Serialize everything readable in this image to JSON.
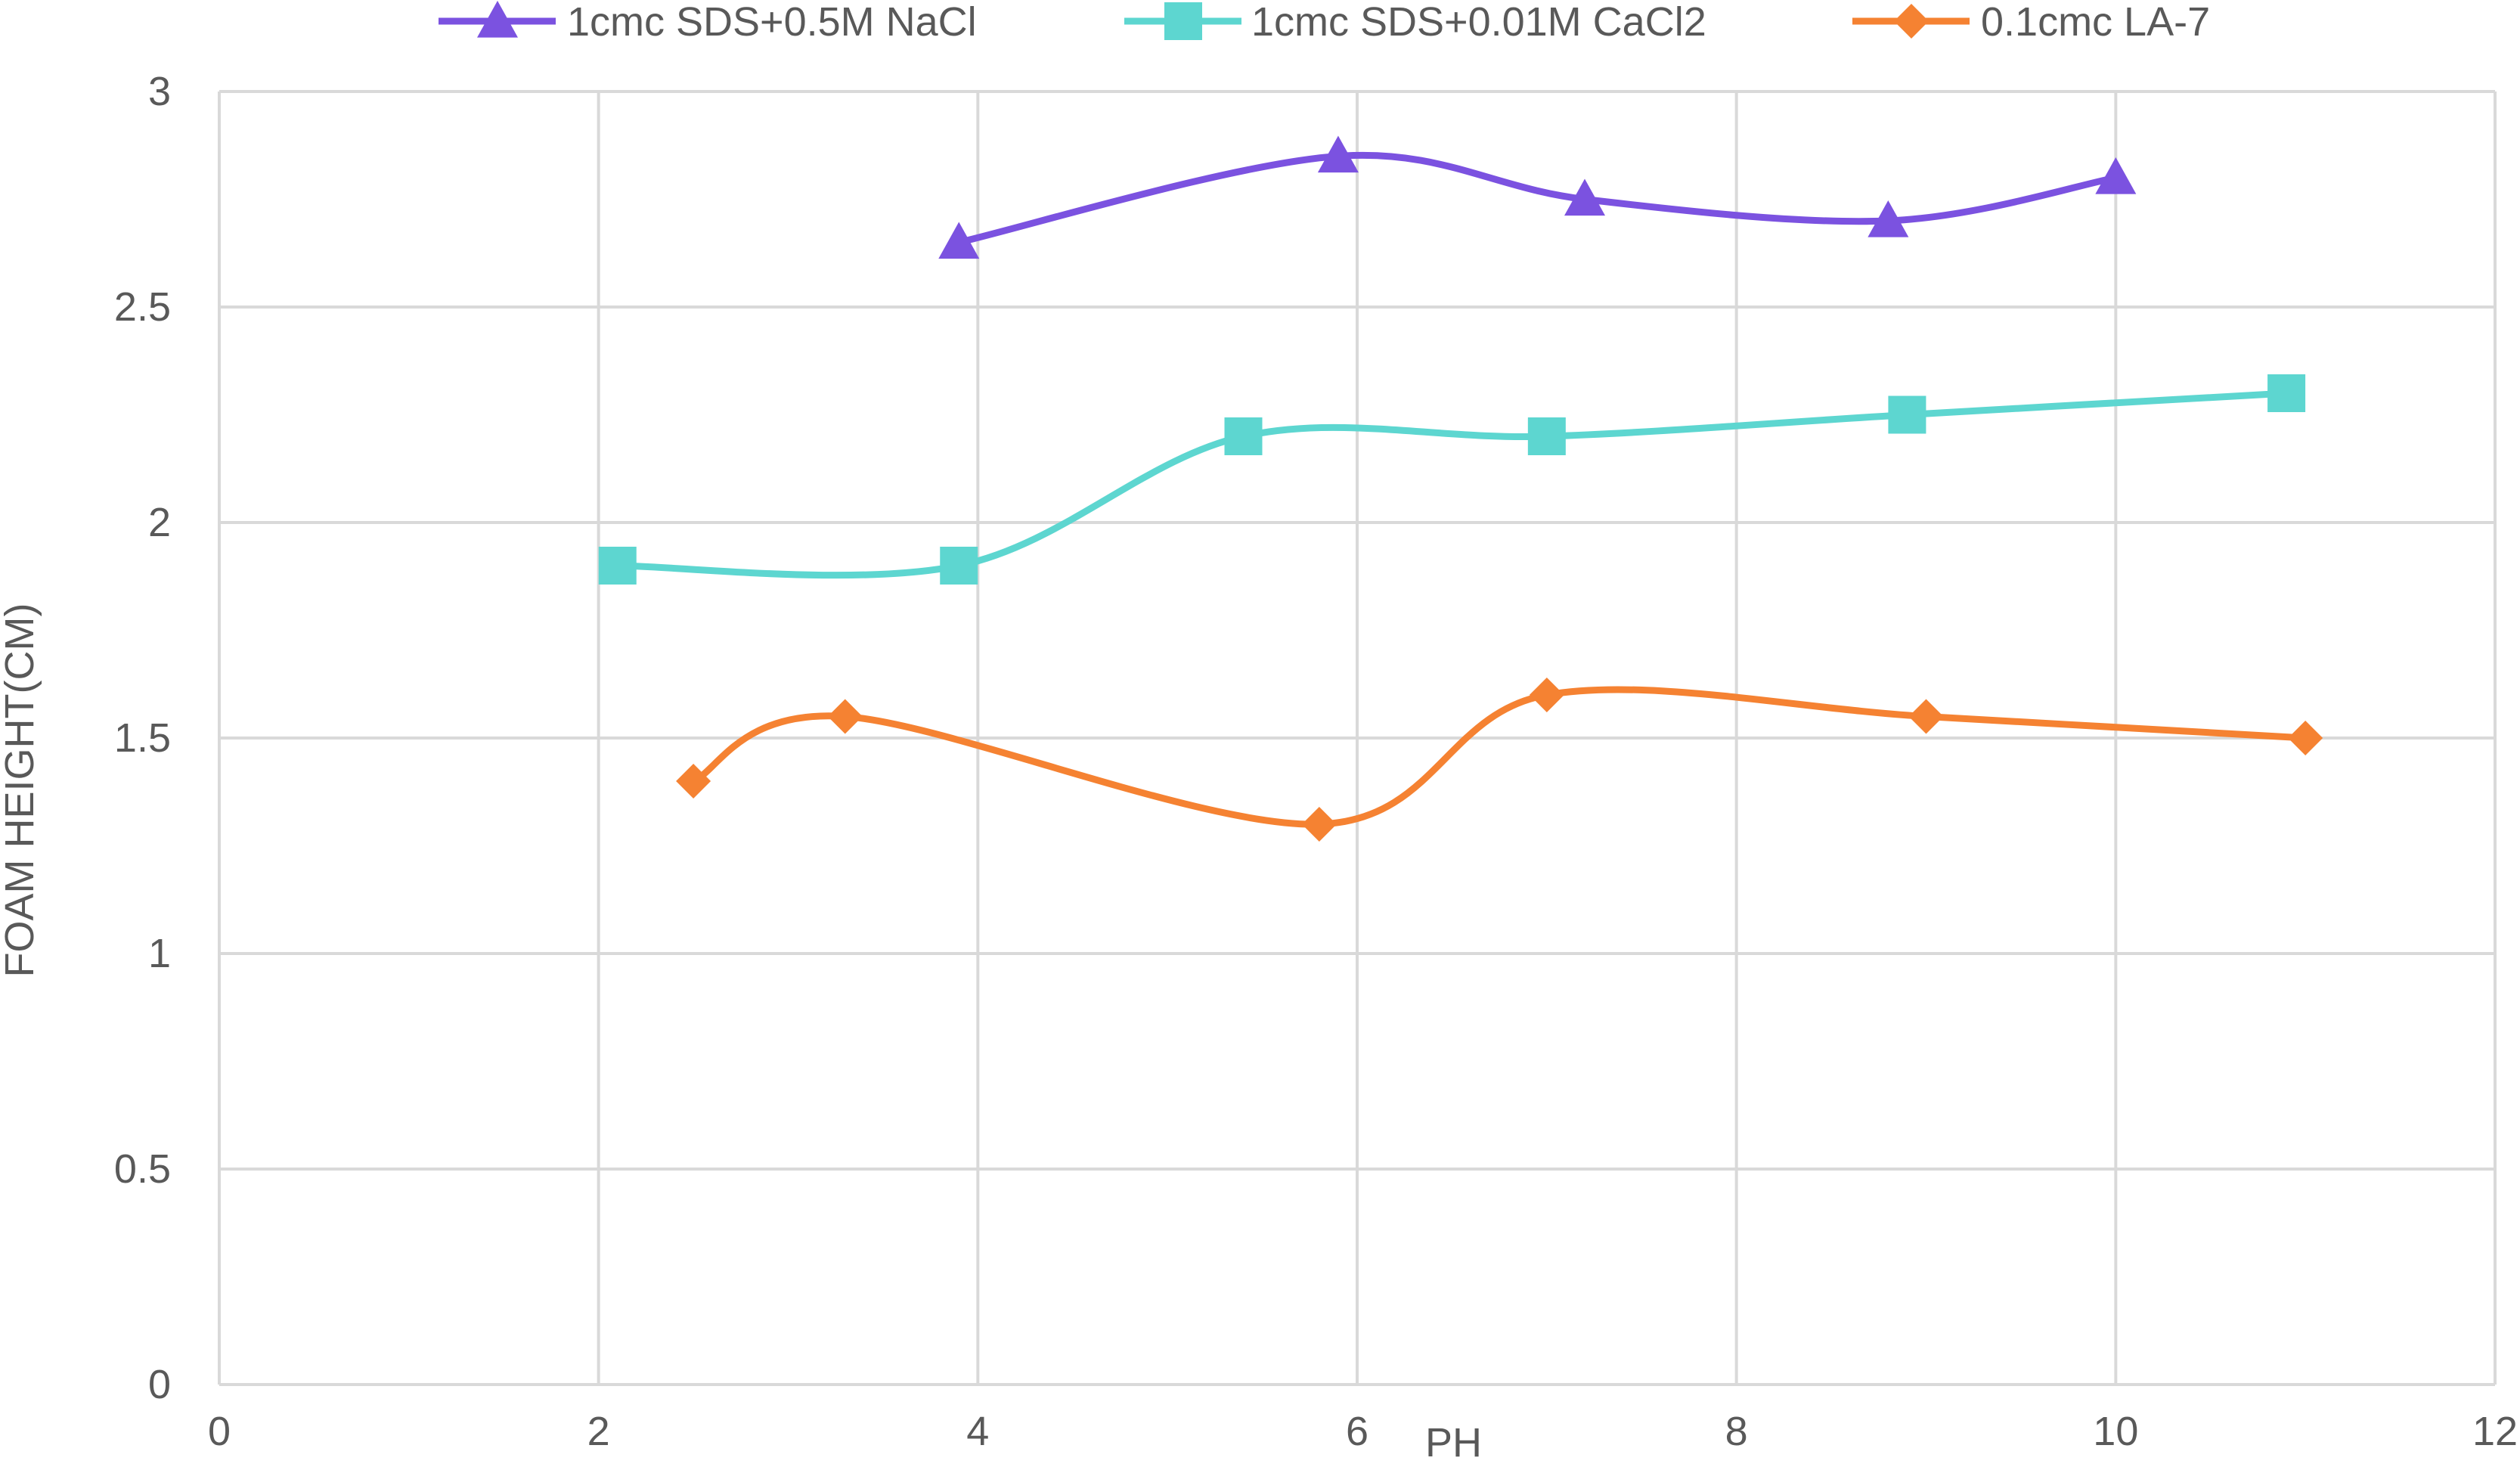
{
  "chart_data": {
    "type": "line",
    "smooth": true,
    "title": "",
    "xlabel": "PH",
    "ylabel": "FOAM HEIGHT(CM)",
    "xlim": [
      0,
      12
    ],
    "ylim": [
      0,
      3
    ],
    "x_ticks": [
      0,
      2,
      4,
      6,
      8,
      10,
      12
    ],
    "y_ticks": [
      0,
      0.5,
      1,
      1.5,
      2,
      2.5,
      3
    ],
    "grid": true,
    "legend_position": "top",
    "series": [
      {
        "name": "1cmc SDS+0.5M NaCl",
        "color": "#7B52E0",
        "marker": "triangle",
        "points": [
          [
            3.9,
            2.65
          ],
          [
            5.9,
            2.85
          ],
          [
            7.2,
            2.75
          ],
          [
            8.8,
            2.7
          ],
          [
            10.0,
            2.8
          ]
        ]
      },
      {
        "name": "1cmc SDS+0.01M CaCl2",
        "color": "#5DD6D0",
        "marker": "square",
        "points": [
          [
            2.1,
            1.9
          ],
          [
            3.9,
            1.9
          ],
          [
            5.4,
            2.2
          ],
          [
            7.0,
            2.2
          ],
          [
            8.9,
            2.25
          ],
          [
            10.9,
            2.3
          ]
        ]
      },
      {
        "name": "0.1cmc LA-7",
        "color": "#F58232",
        "marker": "diamond",
        "points": [
          [
            2.5,
            1.4
          ],
          [
            3.3,
            1.55
          ],
          [
            5.8,
            1.3
          ],
          [
            7.0,
            1.6
          ],
          [
            9.0,
            1.55
          ],
          [
            11.0,
            1.5
          ]
        ]
      }
    ]
  }
}
